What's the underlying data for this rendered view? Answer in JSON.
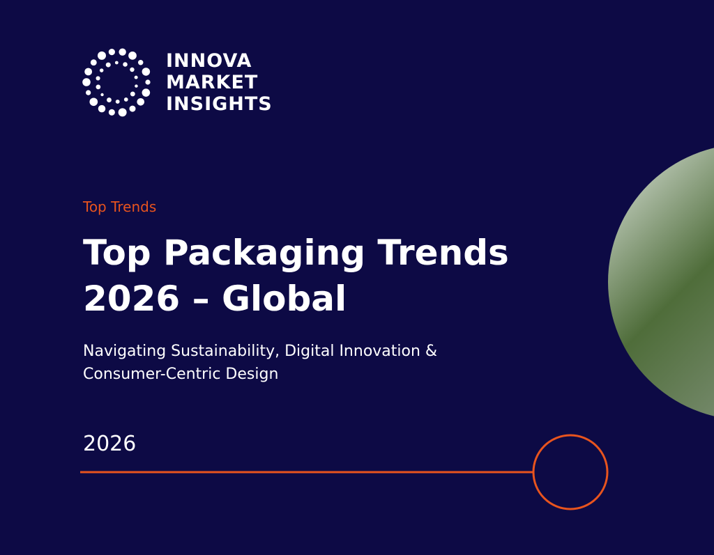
{
  "logo": {
    "lines": [
      "INNOVA",
      "MARKET",
      "INSIGHTS"
    ]
  },
  "eyebrow": "Top Trends",
  "title": {
    "lines": [
      "Top Packaging Trends",
      "2026 – Global"
    ]
  },
  "subtitle": {
    "lines": [
      "Navigating Sustainability, Digital Innovation &",
      "Consumer-Centric Design"
    ]
  },
  "year": "2026"
}
